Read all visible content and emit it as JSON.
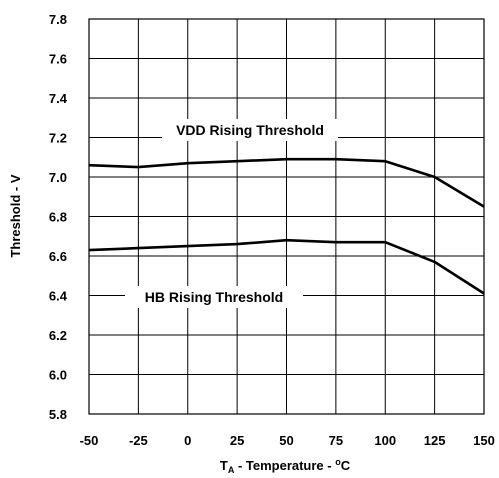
{
  "chart_data": {
    "type": "line",
    "xlabel_main": "T",
    "xlabel_sub": "A",
    "xlabel_rest": " - Temperature - ",
    "xlabel_sup": "o",
    "xlabel_unit": "C",
    "ylabel": "Threshold - V",
    "x": [
      -50,
      -25,
      0,
      25,
      50,
      75,
      100,
      125,
      150
    ],
    "xlim": [
      -50,
      150
    ],
    "ylim": [
      5.8,
      7.8
    ],
    "x_ticks": [
      "-50",
      "-25",
      "0",
      "25",
      "50",
      "75",
      "100",
      "125",
      "150"
    ],
    "y_ticks": [
      "5.8",
      "6.0",
      "6.2",
      "6.4",
      "6.6",
      "6.8",
      "7.0",
      "7.2",
      "7.4",
      "7.6",
      "7.8"
    ],
    "grid": true,
    "series": [
      {
        "name": "VDD Rising Threshold",
        "values": [
          7.06,
          7.05,
          7.07,
          7.08,
          7.09,
          7.09,
          7.08,
          7.0,
          6.85
        ]
      },
      {
        "name": "HB Rising Threshold",
        "values": [
          6.63,
          6.64,
          6.65,
          6.66,
          6.68,
          6.67,
          6.67,
          6.57,
          6.41
        ]
      }
    ],
    "annotations": [
      "VDD Rising Threshold",
      "HB Rising Threshold"
    ],
    "line_color": "#000000",
    "grid_color": "#000000"
  }
}
